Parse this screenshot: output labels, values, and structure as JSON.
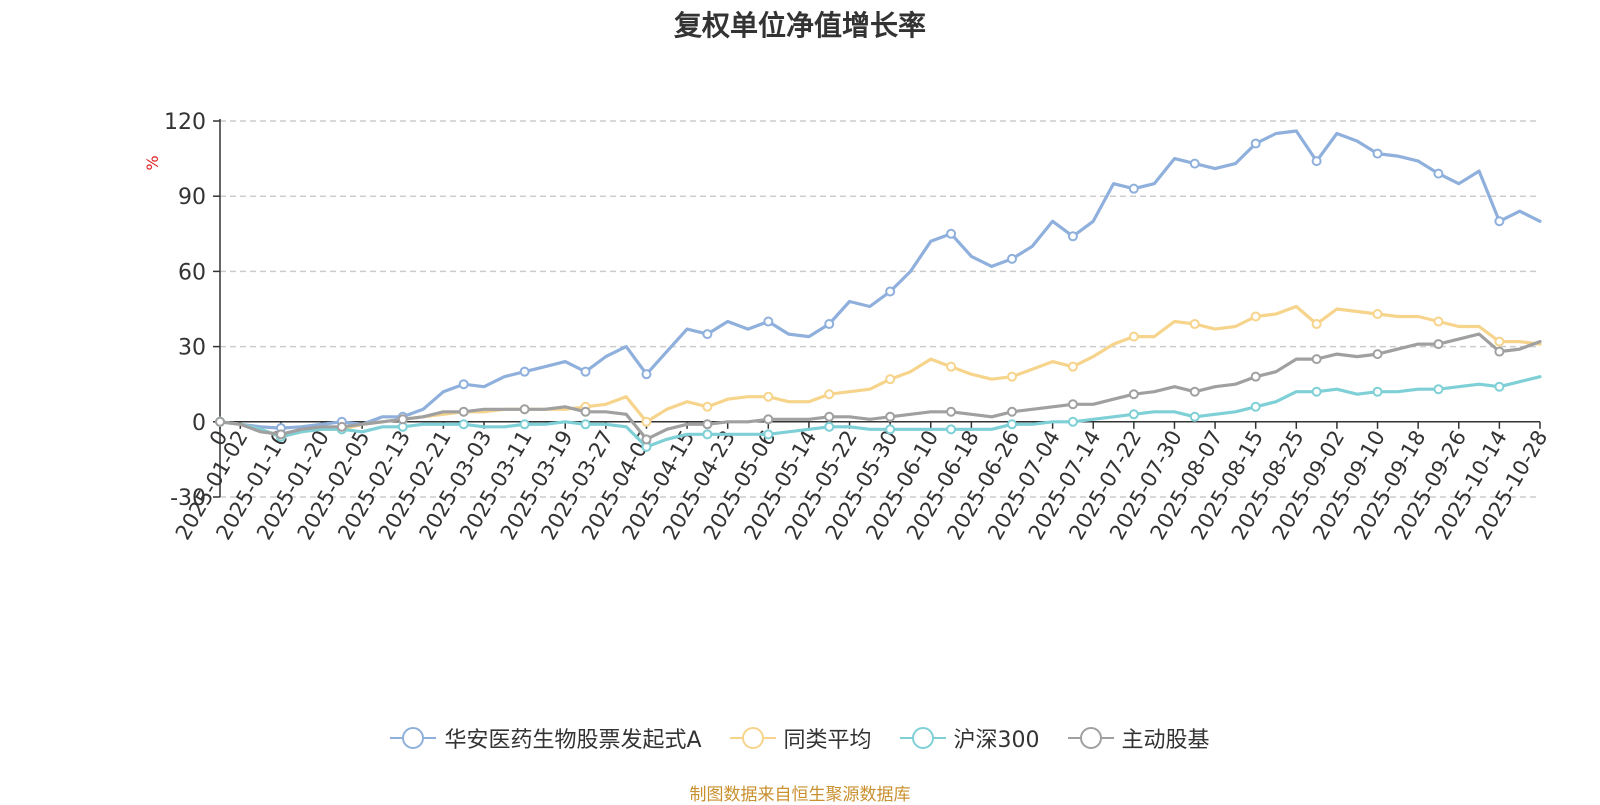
{
  "chart_data": {
    "type": "line",
    "title": "复权单位净值增长率",
    "ylabel": "%",
    "ylim": [
      -30,
      120
    ],
    "yticks": [
      -30,
      0,
      30,
      60,
      90,
      120
    ],
    "grid": true,
    "legend_position": "bottom-center",
    "x_ticks": [
      "0",
      "2025-01-02",
      "2025-01-10",
      "2025-01-20",
      "2025-02-05",
      "2025-02-13",
      "2025-02-21",
      "2025-03-03",
      "2025-03-11",
      "2025-03-19",
      "2025-03-27",
      "2025-04-07",
      "2025-04-15",
      "2025-04-23",
      "2025-05-06",
      "2025-05-14",
      "2025-05-22",
      "2025-05-30",
      "2025-06-10",
      "2025-06-18",
      "2025-06-26",
      "2025-07-04",
      "2025-07-14",
      "2025-07-22",
      "2025-07-30",
      "2025-08-07",
      "2025-08-15",
      "2025-08-25",
      "2025-09-02",
      "2025-09-10",
      "2025-09-18",
      "2025-09-26",
      "2025-10-14",
      "2025-10-28"
    ],
    "x": [
      "0",
      "2025-01-02",
      "2025-01-06",
      "2025-01-10",
      "2025-01-14",
      "2025-01-20",
      "2025-01-24",
      "2025-02-05",
      "2025-02-09",
      "2025-02-13",
      "2025-02-17",
      "2025-02-21",
      "2025-02-25",
      "2025-03-03",
      "2025-03-07",
      "2025-03-11",
      "2025-03-15",
      "2025-03-19",
      "2025-03-23",
      "2025-03-27",
      "2025-04-01",
      "2025-04-07",
      "2025-04-11",
      "2025-04-15",
      "2025-04-19",
      "2025-04-23",
      "2025-04-28",
      "2025-05-06",
      "2025-05-10",
      "2025-05-14",
      "2025-05-18",
      "2025-05-22",
      "2025-05-26",
      "2025-05-30",
      "2025-06-05",
      "2025-06-10",
      "2025-06-14",
      "2025-06-18",
      "2025-06-22",
      "2025-06-26",
      "2025-06-30",
      "2025-07-04",
      "2025-07-09",
      "2025-07-14",
      "2025-07-18",
      "2025-07-22",
      "2025-07-26",
      "2025-07-30",
      "2025-08-03",
      "2025-08-07",
      "2025-08-11",
      "2025-08-15",
      "2025-08-20",
      "2025-08-25",
      "2025-08-29",
      "2025-09-02",
      "2025-09-06",
      "2025-09-10",
      "2025-09-14",
      "2025-09-18",
      "2025-09-22",
      "2025-09-26",
      "2025-10-05",
      "2025-10-14",
      "2025-10-21",
      "2025-10-28"
    ],
    "series": [
      {
        "name": "华安医药生物股票发起式A",
        "color": "#8fb0dc",
        "values": [
          0,
          -1,
          -2,
          -2.5,
          -2,
          -1,
          0,
          -1,
          2,
          2,
          5,
          12,
          15,
          14,
          18,
          20,
          22,
          24,
          20,
          26,
          30,
          19,
          28,
          37,
          35,
          40,
          37,
          40,
          35,
          34,
          39,
          48,
          46,
          52,
          60,
          72,
          75,
          66,
          62,
          65,
          70,
          80,
          74,
          80,
          95,
          93,
          95,
          105,
          103,
          101,
          103,
          111,
          115,
          116,
          104,
          115,
          112,
          107,
          106,
          104,
          99,
          95,
          100,
          80,
          84,
          80
        ]
      },
      {
        "name": "同类平均",
        "color": "#f6d48c",
        "values": [
          0,
          -1,
          -3,
          -6,
          -4,
          -3,
          -3,
          -1,
          0,
          1,
          2,
          3,
          4,
          4,
          5,
          5,
          5,
          5,
          6,
          7,
          10,
          0,
          5,
          8,
          6,
          9,
          10,
          10,
          8,
          8,
          11,
          12,
          13,
          17,
          20,
          25,
          22,
          19,
          17,
          18,
          21,
          24,
          22,
          26,
          31,
          34,
          34,
          40,
          39,
          37,
          38,
          42,
          43,
          46,
          39,
          45,
          44,
          43,
          42,
          42,
          40,
          38,
          38,
          32,
          32,
          31
        ]
      },
      {
        "name": "沪深300",
        "color": "#7ed0d6",
        "values": [
          0,
          -1,
          -3,
          -6,
          -4,
          -3,
          -3,
          -4,
          -2,
          -2,
          -1,
          -1,
          -1,
          -2,
          -2,
          -1,
          -1,
          0,
          -1,
          -1,
          -2,
          -10,
          -7,
          -5,
          -5,
          -5,
          -5,
          -5,
          -4,
          -3,
          -2,
          -2,
          -3,
          -3,
          -3,
          -3,
          -3,
          -3,
          -3,
          -1,
          -1,
          0,
          0,
          1,
          2,
          3,
          4,
          4,
          2,
          3,
          4,
          6,
          8,
          12,
          12,
          13,
          11,
          12,
          12,
          13,
          13,
          14,
          15,
          14,
          16,
          18
        ]
      },
      {
        "name": "主动股基",
        "color": "#a0a0a0",
        "values": [
          0,
          -1,
          -4,
          -5,
          -3,
          -2,
          -2,
          -1,
          0,
          1,
          2,
          4,
          4,
          5,
          5,
          5,
          5,
          6,
          4,
          4,
          3,
          -7,
          -3,
          -1,
          -1,
          0,
          0,
          1,
          1,
          1,
          2,
          2,
          1,
          2,
          3,
          4,
          4,
          3,
          2,
          4,
          5,
          6,
          7,
          7,
          9,
          11,
          12,
          14,
          12,
          14,
          15,
          18,
          20,
          25,
          25,
          27,
          26,
          27,
          29,
          31,
          31,
          33,
          35,
          28,
          29,
          32
        ]
      }
    ]
  },
  "source_note": "制图数据来自恒生聚源数据库"
}
